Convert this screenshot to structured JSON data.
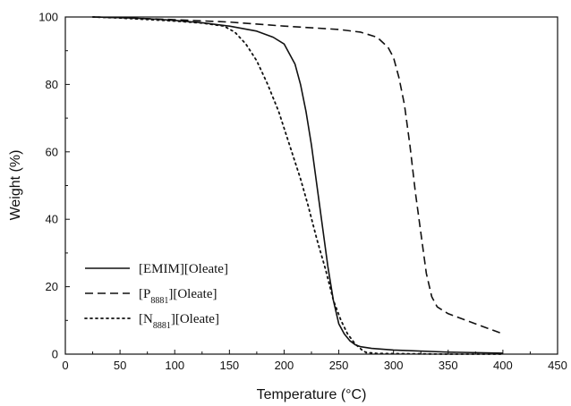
{
  "chart_data": {
    "type": "line",
    "xlabel": "Temperature (°C)",
    "ylabel": "Weight (%)",
    "xlim": [
      0,
      450
    ],
    "ylim": [
      0,
      100
    ],
    "xticks": [
      0,
      50,
      100,
      150,
      200,
      250,
      300,
      350,
      400,
      450
    ],
    "yticks": [
      0,
      20,
      40,
      60,
      80,
      100
    ],
    "legend_position": "lower-left",
    "grid": false,
    "series": [
      {
        "name": "[EMIM][Oleate]",
        "line_style": "solid",
        "legend_parts": [
          {
            "text": "[EMIM][Oleate]",
            "sub": false
          }
        ],
        "points": [
          [
            25,
            100
          ],
          [
            50,
            99.8
          ],
          [
            75,
            99.5
          ],
          [
            100,
            99
          ],
          [
            125,
            98.3
          ],
          [
            150,
            97.3
          ],
          [
            175,
            95.8
          ],
          [
            190,
            94
          ],
          [
            200,
            92
          ],
          [
            210,
            86
          ],
          [
            215,
            80
          ],
          [
            220,
            72
          ],
          [
            225,
            62
          ],
          [
            230,
            50
          ],
          [
            235,
            38
          ],
          [
            240,
            26
          ],
          [
            245,
            16
          ],
          [
            250,
            9
          ],
          [
            255,
            6
          ],
          [
            260,
            4
          ],
          [
            265,
            2.8
          ],
          [
            270,
            2.2
          ],
          [
            280,
            1.7
          ],
          [
            300,
            1.2
          ],
          [
            350,
            0.6
          ],
          [
            400,
            0.3
          ]
        ]
      },
      {
        "name": "[P8881][Oleate]",
        "line_style": "dashed",
        "legend_parts": [
          {
            "text": "[P",
            "sub": false
          },
          {
            "text": "8881",
            "sub": true
          },
          {
            "text": "][Oleate]",
            "sub": false
          }
        ],
        "points": [
          [
            25,
            100
          ],
          [
            50,
            99.8
          ],
          [
            100,
            99.2
          ],
          [
            150,
            98.5
          ],
          [
            200,
            97.3
          ],
          [
            250,
            96.3
          ],
          [
            270,
            95.5
          ],
          [
            285,
            94
          ],
          [
            295,
            91
          ],
          [
            300,
            88
          ],
          [
            305,
            82
          ],
          [
            310,
            74
          ],
          [
            315,
            62
          ],
          [
            320,
            48
          ],
          [
            325,
            36
          ],
          [
            330,
            24
          ],
          [
            335,
            17
          ],
          [
            340,
            14
          ],
          [
            350,
            12
          ],
          [
            375,
            9
          ],
          [
            400,
            6
          ]
        ]
      },
      {
        "name": "[N8881][Oleate]",
        "line_style": "dotted",
        "legend_parts": [
          {
            "text": "[N",
            "sub": false
          },
          {
            "text": "8881",
            "sub": true
          },
          {
            "text": "][Oleate]",
            "sub": false
          }
        ],
        "points": [
          [
            25,
            100
          ],
          [
            50,
            99.7
          ],
          [
            100,
            98.8
          ],
          [
            125,
            98.2
          ],
          [
            145,
            97.3
          ],
          [
            155,
            95.5
          ],
          [
            165,
            92
          ],
          [
            175,
            87
          ],
          [
            185,
            80
          ],
          [
            195,
            72
          ],
          [
            205,
            62
          ],
          [
            215,
            52
          ],
          [
            222,
            44
          ],
          [
            230,
            34
          ],
          [
            238,
            25
          ],
          [
            245,
            16
          ],
          [
            252,
            10
          ],
          [
            258,
            6
          ],
          [
            265,
            3
          ],
          [
            272,
            1
          ],
          [
            275,
            0.5
          ],
          [
            285,
            0.2
          ],
          [
            350,
            0
          ],
          [
            400,
            0
          ]
        ]
      }
    ]
  }
}
